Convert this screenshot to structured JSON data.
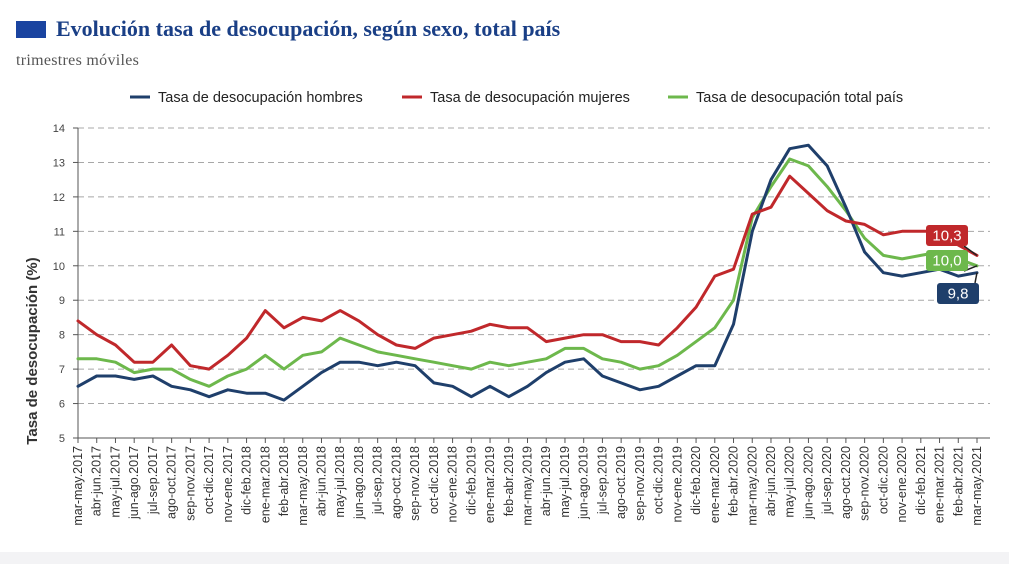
{
  "header": {
    "title": "Evolución tasa de desocupación, según sexo, total país",
    "subtitle": "trimestres móviles",
    "accent": "#1a44a0"
  },
  "chart_data": {
    "type": "line",
    "ylabel": "Tasa de desocupación (%)",
    "xlabel": "",
    "ylim": [
      5,
      14
    ],
    "yticks": [
      5,
      6,
      7,
      8,
      9,
      10,
      11,
      12,
      13,
      14
    ],
    "grid": "horizontal-dashed",
    "legend": "top",
    "categories": [
      "mar-may.2017",
      "abr-jun.2017",
      "may-jul.2017",
      "jun-ago.2017",
      "jul-sep.2017",
      "ago-oct.2017",
      "sep-nov.2017",
      "oct-dic.2017",
      "nov-ene.2017",
      "dic-feb.2018",
      "ene-mar.2018",
      "feb-abr.2018",
      "mar-may.2018",
      "abr-jun.2018",
      "may-jul.2018",
      "jun-ago.2018",
      "jul-sep.2018",
      "ago-oct.2018",
      "sep-nov.2018",
      "oct-dic.2018",
      "nov-ene.2018",
      "dic-feb.2019",
      "ene-mar.2019",
      "feb-abr.2019",
      "mar-may.2019",
      "abr-jun.2019",
      "may-jul.2019",
      "jun-ago.2019",
      "jul-sep.2019",
      "ago-oct.2019",
      "sep-nov.2019",
      "oct-dic.2019",
      "nov-ene.2019",
      "dic-feb.2020",
      "ene-mar.2020",
      "feb-abr.2020",
      "mar-may.2020",
      "abr-jun.2020",
      "may-jul.2020",
      "jun-ago.2020",
      "jul-sep.2020",
      "ago-oct.2020",
      "sep-nov.2020",
      "oct-dic.2020",
      "nov-ene.2020",
      "dic-feb.2021",
      "ene-mar.2021",
      "feb-abr.2021",
      "mar-may.2021"
    ],
    "series": [
      {
        "name": "Tasa de desocupación hombres",
        "color": "#1f3f6b",
        "values": [
          6.5,
          6.8,
          6.8,
          6.7,
          6.8,
          6.5,
          6.4,
          6.2,
          6.4,
          6.3,
          6.3,
          6.1,
          6.5,
          6.9,
          7.2,
          7.2,
          7.1,
          7.2,
          7.1,
          6.6,
          6.5,
          6.2,
          6.5,
          6.2,
          6.5,
          6.9,
          7.2,
          7.3,
          6.8,
          6.6,
          6.4,
          6.5,
          6.8,
          7.1,
          7.1,
          8.3,
          11.0,
          12.5,
          13.4,
          13.5,
          12.9,
          11.7,
          10.4,
          9.8,
          9.7,
          9.8,
          9.9,
          9.7,
          9.8
        ],
        "end_label": "9,8"
      },
      {
        "name": "Tasa de desocupación mujeres",
        "color": "#c0282b",
        "values": [
          8.4,
          8.0,
          7.7,
          7.2,
          7.2,
          7.7,
          7.1,
          7.0,
          7.4,
          7.9,
          8.7,
          8.2,
          8.5,
          8.4,
          8.7,
          8.4,
          8.0,
          7.7,
          7.6,
          7.9,
          8.0,
          8.1,
          8.3,
          8.2,
          8.2,
          7.8,
          7.9,
          8.0,
          8.0,
          7.8,
          7.8,
          7.7,
          8.2,
          8.8,
          9.7,
          9.9,
          11.5,
          11.7,
          12.6,
          12.1,
          11.6,
          11.3,
          11.2,
          10.9,
          11.0,
          11.0,
          11.0,
          10.6,
          10.3
        ],
        "end_label": "10,3"
      },
      {
        "name": "Tasa de desocupación total país",
        "color": "#6db84c",
        "values": [
          7.3,
          7.3,
          7.2,
          6.9,
          7.0,
          7.0,
          6.7,
          6.5,
          6.8,
          7.0,
          7.4,
          7.0,
          7.4,
          7.5,
          7.9,
          7.7,
          7.5,
          7.4,
          7.3,
          7.2,
          7.1,
          7.0,
          7.2,
          7.1,
          7.2,
          7.3,
          7.6,
          7.6,
          7.3,
          7.2,
          7.0,
          7.1,
          7.4,
          7.8,
          8.2,
          9.0,
          11.4,
          12.3,
          13.1,
          12.9,
          12.3,
          11.6,
          10.8,
          10.3,
          10.2,
          10.3,
          10.4,
          10.2,
          10.0
        ],
        "end_label": "10,0"
      }
    ]
  }
}
